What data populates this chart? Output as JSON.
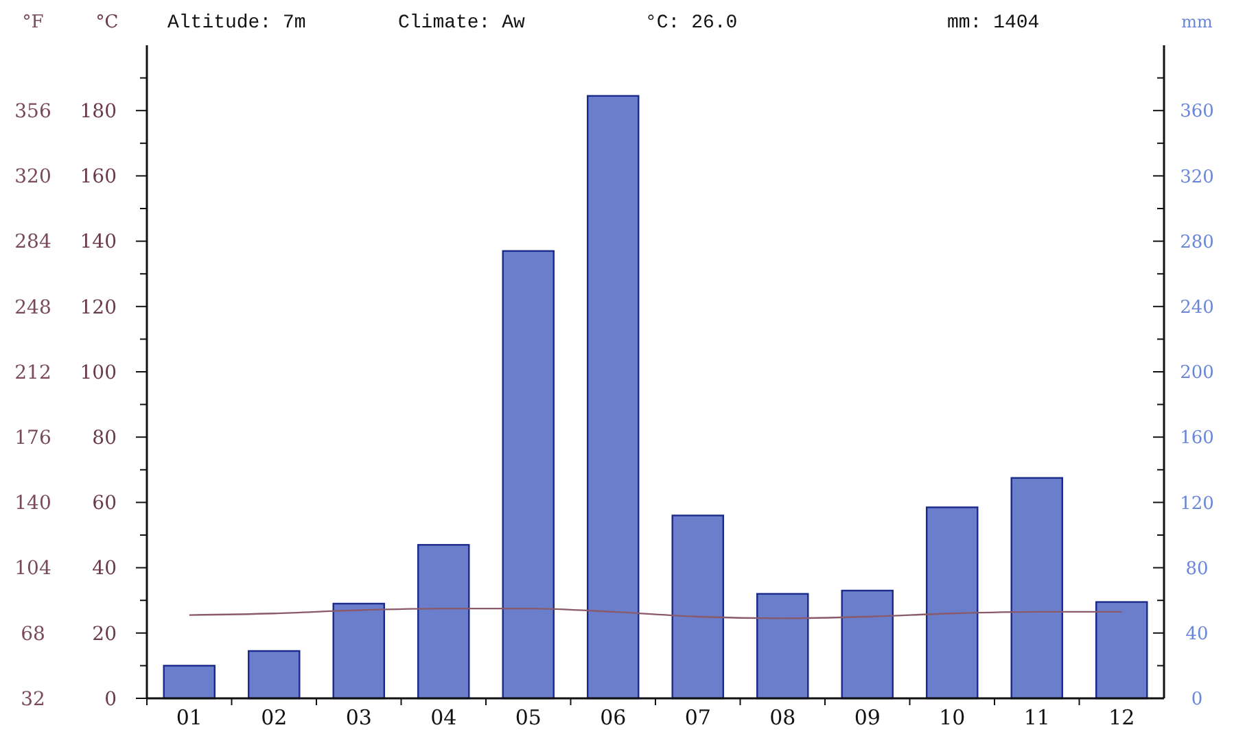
{
  "chart_data": {
    "type": "bar",
    "categories": [
      "01",
      "02",
      "03",
      "04",
      "05",
      "06",
      "07",
      "08",
      "09",
      "10",
      "11",
      "12"
    ],
    "ylabel": "°C",
    "y2label": "mm",
    "y3label": "°F",
    "annotations": [
      "Altitude: 7m",
      "Climate: Aw",
      "°C: 26.0",
      "mm: 1404"
    ],
    "series": [
      {
        "axis": "y2",
        "color": "#6a7ecb",
        "values": [
          20,
          29,
          58,
          94,
          274,
          369,
          112,
          64,
          66,
          117,
          135,
          59
        ]
      },
      {
        "type": "line",
        "axis": "y",
        "color": "#8a5a6a",
        "values": [
          25.5,
          26,
          27,
          27.5,
          27.5,
          26.5,
          25,
          24.5,
          25,
          26,
          26.5,
          26.5
        ]
      }
    ],
    "ylim": [
      0,
      200
    ],
    "yticks": [
      0,
      {
        "value": 10,
        "label": null
      },
      20,
      {
        "value": 30,
        "label": null
      },
      40,
      {
        "value": 50,
        "label": null
      },
      60,
      {
        "value": 70,
        "label": null
      },
      80,
      {
        "value": 90,
        "label": null
      },
      100,
      {
        "value": 110,
        "label": null
      },
      120,
      {
        "value": 130,
        "label": null
      },
      140,
      {
        "value": 150,
        "label": null
      },
      160,
      {
        "value": 170,
        "label": null
      },
      180,
      {
        "value": 190,
        "label": null
      }
    ],
    "y2lim": [
      0,
      400
    ],
    "y2ticks": [
      0,
      {
        "value": 20,
        "label": null
      },
      40,
      {
        "value": 60,
        "label": null
      },
      80,
      {
        "value": 100,
        "label": null
      },
      120,
      {
        "value": 140,
        "label": null
      },
      160,
      {
        "value": 180,
        "label": null
      },
      200,
      {
        "value": 220,
        "label": null
      },
      240,
      {
        "value": 260,
        "label": null
      },
      280,
      {
        "value": 300,
        "label": null
      },
      320,
      {
        "value": 340,
        "label": null
      },
      360,
      {
        "value": 380,
        "label": null
      }
    ],
    "y3lim": [
      32,
      356
    ],
    "y3ticks": [
      32,
      68,
      104,
      140,
      176,
      212,
      248,
      284,
      320,
      356
    ],
    "grid": false,
    "legend": false
  }
}
